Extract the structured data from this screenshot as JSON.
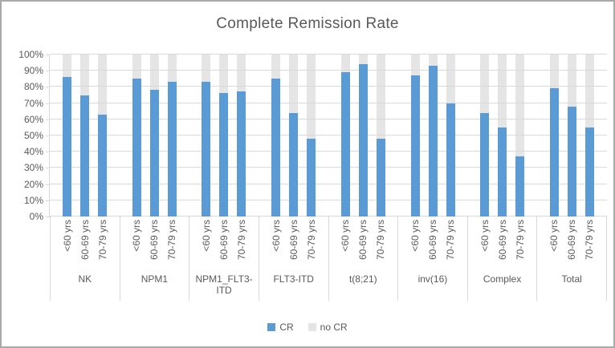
{
  "chart_data": {
    "type": "bar",
    "subtype": "stacked-to-100",
    "title": "Complete Remission Rate",
    "categories": [
      "NK",
      "NPM1",
      "NPM1_FLT3-ITD",
      "FLT3-ITD",
      "t(8;21)",
      "inv(16)",
      "Complex",
      "Total"
    ],
    "subcategories": [
      "<60 yrs",
      "60-69 yrs",
      "70-79 yrs"
    ],
    "series": [
      {
        "name": "CR",
        "color": "#5b9bd5",
        "values": [
          [
            86,
            75,
            63
          ],
          [
            85,
            78,
            83
          ],
          [
            83,
            76,
            77
          ],
          [
            85,
            64,
            48
          ],
          [
            89,
            94,
            48
          ],
          [
            87,
            93,
            70
          ],
          [
            64,
            55,
            37
          ],
          [
            79,
            68,
            55
          ]
        ]
      },
      {
        "name": "no CR",
        "color": "#e5e5e5",
        "values": [
          [
            14,
            25,
            37
          ],
          [
            15,
            22,
            17
          ],
          [
            17,
            24,
            23
          ],
          [
            15,
            36,
            52
          ],
          [
            11,
            6,
            52
          ],
          [
            13,
            7,
            30
          ],
          [
            36,
            45,
            63
          ],
          [
            21,
            32,
            45
          ]
        ]
      }
    ],
    "ylim": [
      0,
      100
    ],
    "ytick_step": 10,
    "ytick_labels": [
      "0%",
      "10%",
      "20%",
      "30%",
      "40%",
      "50%",
      "60%",
      "70%",
      "80%",
      "90%",
      "100%"
    ],
    "grid": true,
    "legend_position": "bottom"
  },
  "legend": {
    "items": [
      {
        "label": "CR",
        "color": "#5b9bd5"
      },
      {
        "label": "no CR",
        "color": "#e5e5e5"
      }
    ]
  },
  "colors": {
    "bar_cr": "#5b9bd5",
    "bar_no_cr": "#e5e5e5",
    "gridline": "#d9d9d9",
    "axis_text": "#595959",
    "frame_border": "#a9a9a9",
    "background": "#ffffff"
  }
}
